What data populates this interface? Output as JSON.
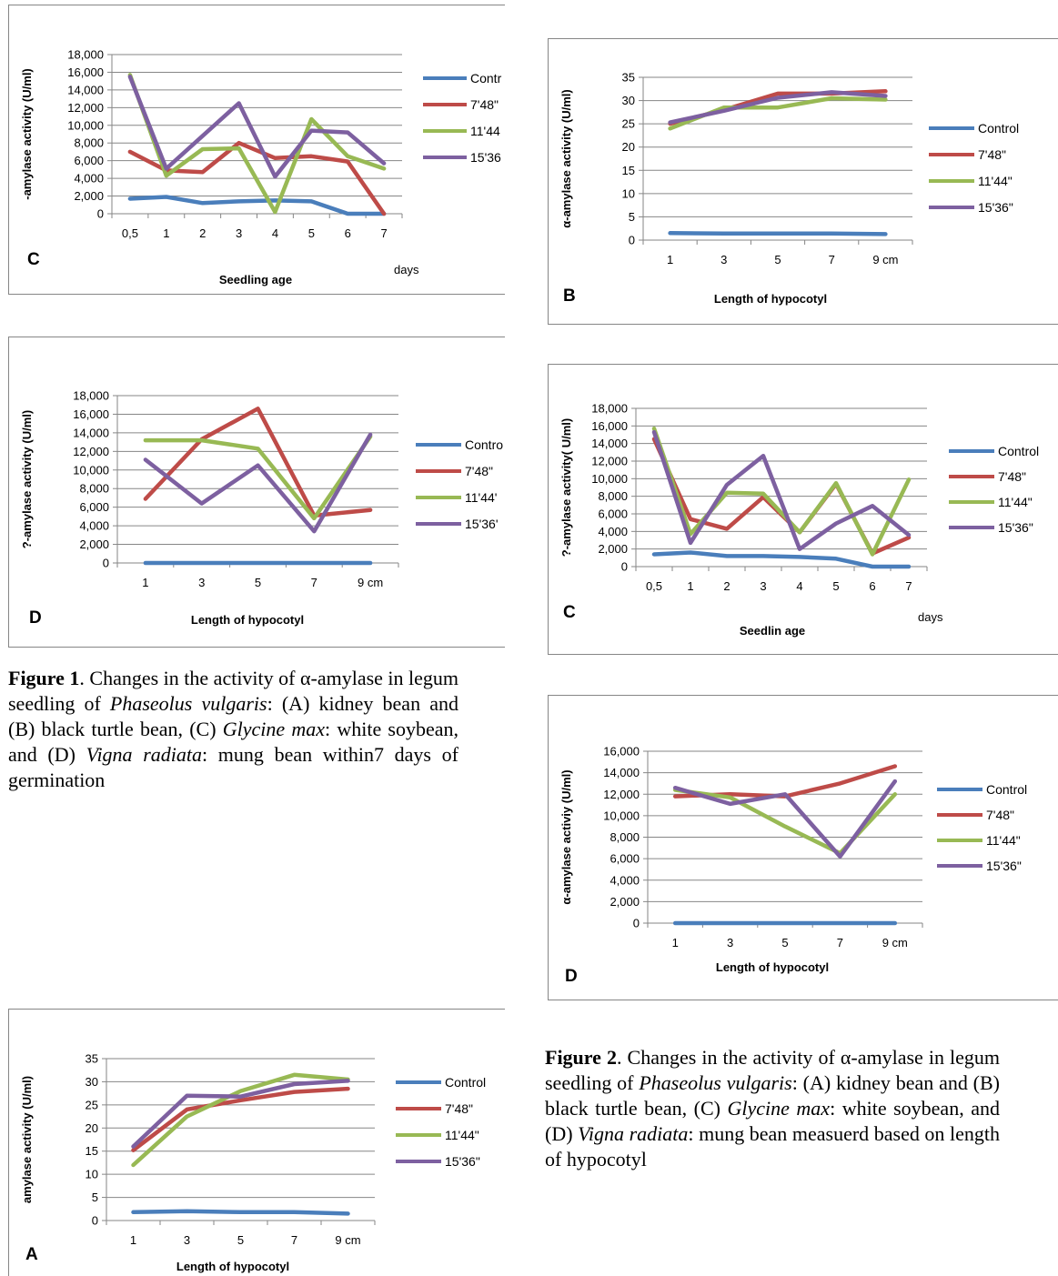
{
  "colors": {
    "Control": "#4a7ebb",
    "7'48\"": "#be4b48",
    "11'44\"": "#98b954",
    "15'36\"": "#7d60a0"
  },
  "captions": {
    "fig1": {
      "label": "Figure 1",
      "text1": ".  Changes in the activity of α-amylase in legum seedling of ",
      "italic1": "Phaseolus vulgaris",
      "text2": ":  (A) kidney bean and (B) black turtle  bean, (C) ",
      "italic2": "Glycine max",
      "text3": ":  white soybean, and (D) ",
      "italic3": "Vigna radiata",
      "text4": ": mung bean within7 days of germination"
    },
    "fig2": {
      "label": "Figure 2",
      "text1": ".  Changes in the activity of α-amylase in legum seedling of ",
      "italic1": "Phaseolus vulgaris",
      "text2": ":  (A) kidney bean and (B) black turtle  bean, (C) ",
      "italic2": "Glycine max",
      "text3": ":  white soybean, and (D) ",
      "italic3": "Vigna radiata",
      "text4": ": mung bean  measuerd  based  on  length  of hypocotyl"
    }
  },
  "chart_data": [
    {
      "id": "fig1C",
      "type": "line",
      "panel_letter": "C",
      "ylabel": "-amylase activity (U/ml)",
      "xlabel": "Seedling age",
      "categories": [
        "0,5",
        "1",
        "2",
        "3",
        "4",
        "5",
        "6",
        "7"
      ],
      "x_unit": "days",
      "ylim": [
        0,
        18000
      ],
      "yticks": [
        "0",
        "2,000",
        "4,000",
        "6,000",
        "8,000",
        "10,000",
        "12,000",
        "14,000",
        "16,000",
        "18,000"
      ],
      "legend": [
        "Contr",
        "7'48\"",
        "11'44",
        "15'36"
      ],
      "series": [
        {
          "name": "Control",
          "values": [
            1700,
            1900,
            1200,
            1400,
            1500,
            1400,
            0,
            0
          ]
        },
        {
          "name": "7'48\"",
          "values": [
            7000,
            4900,
            4700,
            8000,
            6300,
            6500,
            5900,
            0
          ]
        },
        {
          "name": "11'44\"",
          "values": [
            15700,
            4300,
            7300,
            7400,
            200,
            10700,
            6500,
            5100
          ]
        },
        {
          "name": "15'36\"",
          "values": [
            15500,
            5100,
            8800,
            12500,
            4200,
            9400,
            9200,
            5700
          ]
        }
      ]
    },
    {
      "id": "fig1D",
      "type": "line",
      "panel_letter": "D",
      "ylabel": "?-amylase activity (U/ml)",
      "xlabel": "Length of hypocotyl",
      "categories": [
        "1",
        "3",
        "5",
        "7",
        "9 cm"
      ],
      "ylim": [
        0,
        18000
      ],
      "yticks": [
        "0",
        "2,000",
        "4,000",
        "6,000",
        "8,000",
        "10,000",
        "12,000",
        "14,000",
        "16,000",
        "18,000"
      ],
      "legend": [
        "Contro",
        "7'48\"",
        "11'44'",
        "15'36'"
      ],
      "series": [
        {
          "name": "Control",
          "values": [
            0,
            0,
            0,
            0,
            0
          ]
        },
        {
          "name": "7'48\"",
          "values": [
            6900,
            13300,
            16600,
            5100,
            5700
          ]
        },
        {
          "name": "11'44\"",
          "values": [
            13200,
            13200,
            12300,
            4800,
            13600
          ]
        },
        {
          "name": "15'36\"",
          "values": [
            11100,
            6400,
            10500,
            3400,
            13800
          ]
        }
      ]
    },
    {
      "id": "fig1A",
      "type": "line",
      "panel_letter": "A",
      "ylabel": "amylase activity (U/ml)",
      "xlabel": "Length of hypocotyl",
      "categories": [
        "1",
        "3",
        "5",
        "7",
        "9 cm"
      ],
      "ylim": [
        0,
        35
      ],
      "yticks": [
        "0",
        "5",
        "10",
        "15",
        "20",
        "25",
        "30",
        "35"
      ],
      "legend": [
        "Control",
        "7'48\"",
        "11'44\"",
        "15'36\""
      ],
      "series": [
        {
          "name": "Control",
          "values": [
            1.8,
            2.0,
            1.8,
            1.8,
            1.5
          ]
        },
        {
          "name": "7'48\"",
          "values": [
            15.2,
            24.0,
            26.0,
            27.8,
            28.5
          ]
        },
        {
          "name": "11'44\"",
          "values": [
            12.0,
            22.5,
            28.0,
            31.5,
            30.5
          ]
        },
        {
          "name": "15'36\"",
          "values": [
            16.0,
            27.0,
            26.8,
            29.5,
            30.2
          ]
        }
      ]
    },
    {
      "id": "fig2B",
      "type": "line",
      "panel_letter": "B",
      "ylabel": "α-amylase activity (U/ml)",
      "xlabel": "Length of hypocotyl",
      "categories": [
        "1",
        "3",
        "5",
        "7",
        "9 cm"
      ],
      "ylim": [
        0,
        35
      ],
      "yticks": [
        "0",
        "5",
        "10",
        "15",
        "20",
        "25",
        "30",
        "35"
      ],
      "legend": [
        "Control",
        "7'48\"",
        "11'44\"",
        "15'36\""
      ],
      "series": [
        {
          "name": "Control",
          "values": [
            1.5,
            1.4,
            1.4,
            1.4,
            1.3
          ]
        },
        {
          "name": "7'48\"",
          "values": [
            25.0,
            28.0,
            31.5,
            31.5,
            32.0
          ]
        },
        {
          "name": "11'44\"",
          "values": [
            24.0,
            28.5,
            28.5,
            30.5,
            30.2
          ]
        },
        {
          "name": "15'36\"",
          "values": [
            25.3,
            27.8,
            30.6,
            31.8,
            31.0
          ]
        }
      ]
    },
    {
      "id": "fig2C",
      "type": "line",
      "panel_letter": "C",
      "ylabel": "?-amylase activity( U/ml)",
      "xlabel": "Seedlin age",
      "categories": [
        "0,5",
        "1",
        "2",
        "3",
        "4",
        "5",
        "6",
        "7"
      ],
      "x_unit": "days",
      "ylim": [
        0,
        18000
      ],
      "yticks": [
        "0",
        "2,000",
        "4,000",
        "6,000",
        "8,000",
        "10,000",
        "12,000",
        "14,000",
        "16,000",
        "18,000"
      ],
      "legend": [
        "Control",
        "7'48\"",
        "11'44\"",
        "15'36\""
      ],
      "series": [
        {
          "name": "Control",
          "values": [
            1400,
            1600,
            1200,
            1200,
            1100,
            900,
            0,
            0
          ]
        },
        {
          "name": "7'48\"",
          "values": [
            14500,
            5400,
            4300,
            7900,
            3900,
            9400,
            1500,
            3300
          ]
        },
        {
          "name": "11'44\"",
          "values": [
            15700,
            3700,
            8400,
            8300,
            3900,
            9500,
            1400,
            9900
          ]
        },
        {
          "name": "15'36\"",
          "values": [
            15300,
            2700,
            9300,
            12600,
            2000,
            4900,
            6900,
            3600
          ]
        }
      ]
    },
    {
      "id": "fig2D",
      "type": "line",
      "panel_letter": "D",
      "ylabel": "α-amylase activiy (U/ml)",
      "xlabel": "Length of hypocotyl",
      "categories": [
        "1",
        "3",
        "5",
        "7",
        "9 cm"
      ],
      "ylim": [
        0,
        16000
      ],
      "yticks": [
        "0",
        "2,000",
        "4,000",
        "6,000",
        "8,000",
        "10,000",
        "12,000",
        "14,000",
        "16,000"
      ],
      "legend": [
        "Control",
        "7'48\"",
        "11'44\"",
        "15'36\""
      ],
      "series": [
        {
          "name": "Control",
          "values": [
            0,
            0,
            0,
            0,
            0
          ]
        },
        {
          "name": "7'48\"",
          "values": [
            11800,
            12000,
            11800,
            13000,
            14600
          ]
        },
        {
          "name": "11'44\"",
          "values": [
            12400,
            11700,
            9000,
            6500,
            12000
          ]
        },
        {
          "name": "15'36\"",
          "values": [
            12600,
            11100,
            12000,
            6200,
            13200
          ]
        }
      ]
    }
  ]
}
